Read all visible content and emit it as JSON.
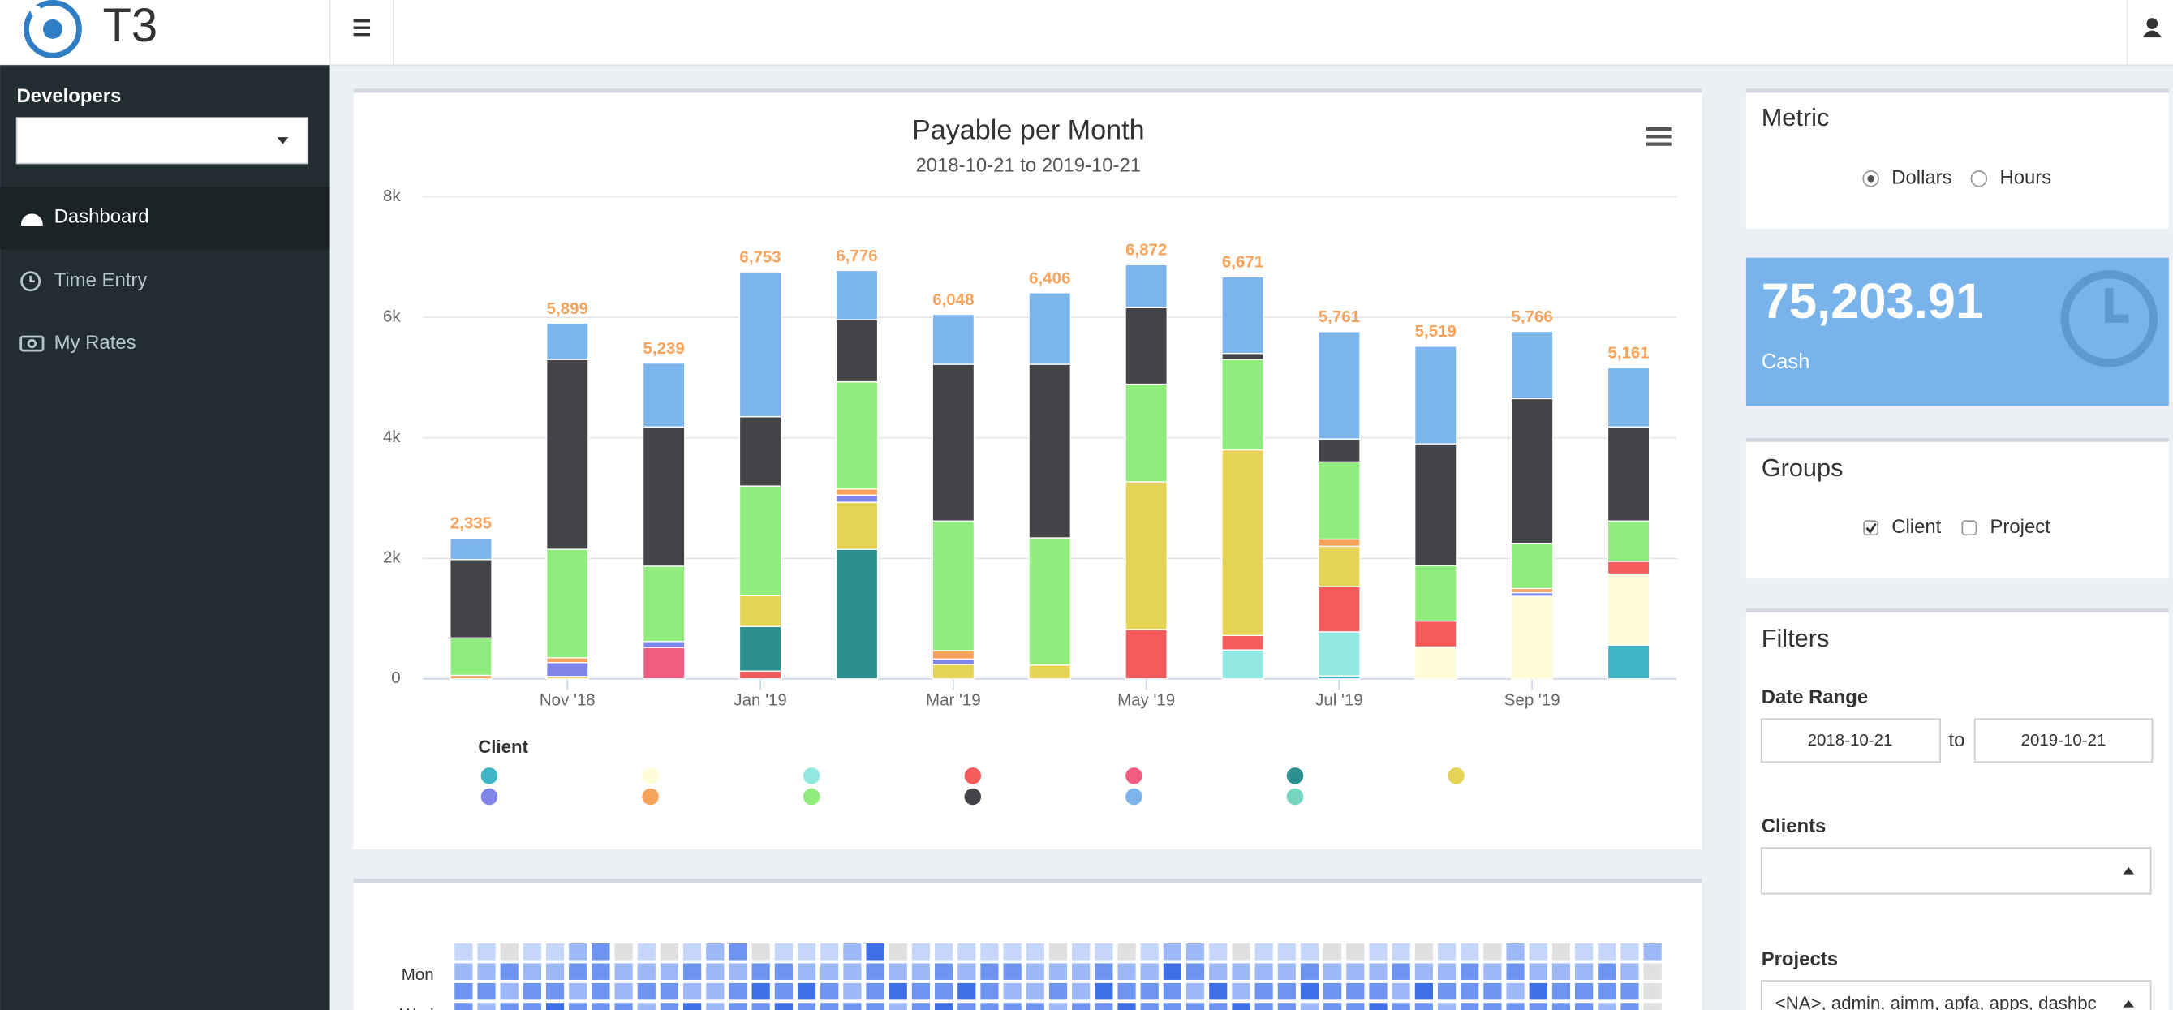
{
  "header": {
    "brand": "T3"
  },
  "sidebar": {
    "section": "Developers",
    "nav": [
      "Dashboard",
      "Time Entry",
      "My Rates"
    ]
  },
  "chart_data": [
    {
      "type": "bar",
      "stacked": true,
      "title": "Payable per Month",
      "subtitle": "2018-10-21 to 2019-10-21",
      "categories": [
        null,
        "Nov '18",
        null,
        "Jan '19",
        null,
        "Mar '19",
        null,
        "May '19",
        null,
        "Jul '19",
        null,
        "Sep '19",
        null
      ],
      "ylim": [
        0,
        8000
      ],
      "yticks": [
        0,
        {
          "value": 2000,
          "label": "2k"
        },
        {
          "value": 4000,
          "label": "4k"
        },
        {
          "value": 6000,
          "label": "6k"
        },
        {
          "value": 8000,
          "label": "8k"
        }
      ],
      "grid": true,
      "legend_title": "Client",
      "series": [
        {
          "color": "#3fb6c6",
          "values": [
            0,
            0,
            0,
            0,
            0,
            0,
            0,
            0,
            0,
            50,
            0,
            0,
            560
          ]
        },
        {
          "color": "#fffdd8",
          "values": [
            0,
            0,
            0,
            0,
            0,
            0,
            0,
            0,
            0,
            0,
            530,
            1370,
            1180
          ]
        },
        {
          "color": "#90e8e1",
          "values": [
            0,
            0,
            0,
            0,
            0,
            0,
            0,
            0,
            480,
            730,
            0,
            0,
            0
          ]
        },
        {
          "color": "#f45b5b",
          "values": [
            0,
            0,
            0,
            130,
            0,
            0,
            0,
            820,
            240,
            750,
            430,
            0,
            210
          ]
        },
        {
          "color": "#f15c80",
          "values": [
            0,
            0,
            520,
            0,
            0,
            0,
            0,
            0,
            0,
            0,
            0,
            0,
            0
          ]
        },
        {
          "color": "#2b908f",
          "values": [
            0,
            0,
            0,
            740,
            2150,
            0,
            0,
            0,
            0,
            0,
            0,
            0,
            0
          ]
        },
        {
          "color": "#e4d354",
          "values": [
            0,
            40,
            0,
            510,
            780,
            240,
            230,
            2450,
            3080,
            670,
            0,
            0,
            0
          ]
        },
        {
          "color": "#8085e9",
          "values": [
            0,
            230,
            100,
            0,
            120,
            90,
            0,
            0,
            0,
            0,
            0,
            60,
            0
          ]
        },
        {
          "color": "#f7a35c",
          "values": [
            60,
            80,
            0,
            0,
            100,
            140,
            0,
            0,
            0,
            120,
            0,
            70,
            0
          ]
        },
        {
          "color": "#90ed7d",
          "values": [
            620,
            1800,
            1250,
            1820,
            1780,
            2150,
            2110,
            1620,
            1500,
            1280,
            920,
            750,
            670
          ]
        },
        {
          "color": "#434348",
          "values": [
            1300,
            3150,
            2310,
            1150,
            1030,
            2600,
            2880,
            1270,
            100,
            380,
            2020,
            2400,
            1560
          ]
        },
        {
          "color": "#7cb5ec",
          "values": [
            355,
            599,
            1059,
            2403,
            816,
            828,
            1186,
            712,
            1271,
            1781,
            1619,
            1116,
            981
          ]
        },
        {
          "color": "#76d6c2",
          "values": [
            0,
            0,
            0,
            0,
            0,
            0,
            0,
            0,
            0,
            0,
            0,
            0,
            0
          ]
        }
      ],
      "totals": {
        "values": [
          2335,
          5899,
          5239,
          6753,
          6776,
          6048,
          6406,
          6872,
          6671,
          5761,
          5519,
          5766,
          5161
        ],
        "value_labels": [
          "2,335",
          "5,899",
          "5,239",
          "6,753",
          "6,776",
          "6,048",
          "6,406",
          "6,872",
          "6,671",
          "5,761",
          "5,519",
          "5,766",
          "5,161"
        ],
        "color": "#f7a35c"
      }
    },
    {
      "type": "heatmap",
      "y_labels": [
        null,
        "Mon",
        null,
        "Wed"
      ],
      "colors": [
        "#e0e0e0",
        "#c6d6fb",
        "#9db8f7",
        "#6d94f0",
        "#3f6fe6"
      ],
      "values": [
        [
          1,
          1,
          0,
          1,
          1,
          2,
          3,
          0,
          1,
          0,
          1,
          2,
          3,
          0,
          1,
          1,
          1,
          2,
          4,
          0,
          1,
          1,
          1,
          1,
          1,
          1,
          0,
          1,
          1,
          0,
          1,
          2,
          2,
          1,
          0,
          1,
          1,
          1,
          0,
          0,
          1,
          1,
          0,
          1,
          1,
          0,
          2,
          1,
          0,
          1,
          1,
          1,
          2
        ],
        [
          2,
          2,
          3,
          2,
          2,
          3,
          3,
          2,
          2,
          2,
          3,
          2,
          2,
          3,
          3,
          2,
          2,
          2,
          3,
          2,
          2,
          3,
          2,
          3,
          3,
          2,
          2,
          2,
          3,
          2,
          2,
          4,
          3,
          2,
          2,
          2,
          2,
          3,
          2,
          2,
          2,
          3,
          2,
          2,
          3,
          2,
          3,
          2,
          2,
          2,
          3,
          2,
          0
        ],
        [
          3,
          3,
          2,
          3,
          3,
          2,
          3,
          2,
          3,
          3,
          2,
          2,
          3,
          4,
          3,
          4,
          3,
          2,
          3,
          4,
          3,
          3,
          4,
          3,
          2,
          2,
          3,
          2,
          4,
          3,
          3,
          3,
          2,
          4,
          2,
          3,
          3,
          4,
          3,
          3,
          3,
          2,
          4,
          3,
          3,
          3,
          2,
          4,
          3,
          3,
          3,
          3,
          0
        ],
        [
          3,
          2,
          3,
          3,
          4,
          3,
          3,
          3,
          2,
          3,
          4,
          2,
          3,
          3,
          4,
          3,
          3,
          3,
          3,
          2,
          3,
          4,
          3,
          3,
          3,
          3,
          2,
          3,
          3,
          4,
          3,
          3,
          3,
          3,
          4,
          3,
          3,
          2,
          3,
          3,
          4,
          3,
          3,
          2,
          3,
          3,
          3,
          3,
          3,
          3,
          2,
          3,
          0
        ]
      ]
    }
  ],
  "metric": {
    "title": "Metric",
    "options": [
      "Dollars",
      "Hours"
    ],
    "selected": 0
  },
  "kpi": {
    "value": "75,203.91",
    "label": "Cash"
  },
  "groups": {
    "title": "Groups",
    "options": [
      "Client",
      "Project"
    ],
    "checked": [
      true,
      false
    ]
  },
  "filters": {
    "title": "Filters",
    "date_range_label": "Date Range",
    "from": "2018-10-21",
    "to_word": "to",
    "to": "2019-10-21",
    "clients_label": "Clients",
    "projects_label": "Projects",
    "projects_value": "<NA>, admin, aimm, apfa, apps, dashbc"
  }
}
